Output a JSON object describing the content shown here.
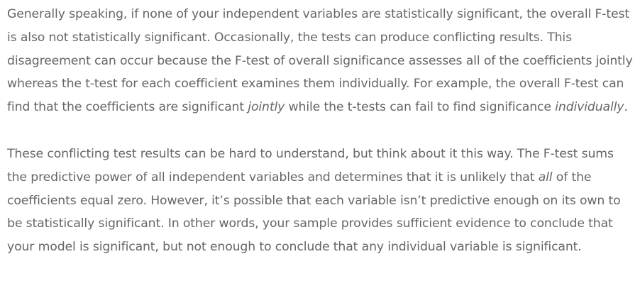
{
  "paragraphs": [
    {
      "parts": [
        "Generally speaking, if none of your independent variables are statistically significant, the overall F-test is also not statistically significant. Occasionally, the tests can produce conflicting results. This disagreement can occur because the F-test of overall significance assesses all of the coefficients jointly whereas the t-test for each coefficient examines them individually. For example, the overall F-test can find that the coefficients are significant ",
        "jointly",
        " while the t-tests can fail to find significance ",
        "individually",
        "."
      ]
    },
    {
      "parts": [
        "These conflicting test results can be hard to understand, but think about it this way. The F-test sums the predictive power of all independent variables and determines that it is unlikely that ",
        "all",
        " of the coefficients equal zero. However, it’s possible that each variable isn’t predictive enough on its own to be statistically significant. In other words, your sample provides sufficient evidence to conclude that your model is significant, but not enough to conclude that any individual variable is significant."
      ]
    }
  ]
}
